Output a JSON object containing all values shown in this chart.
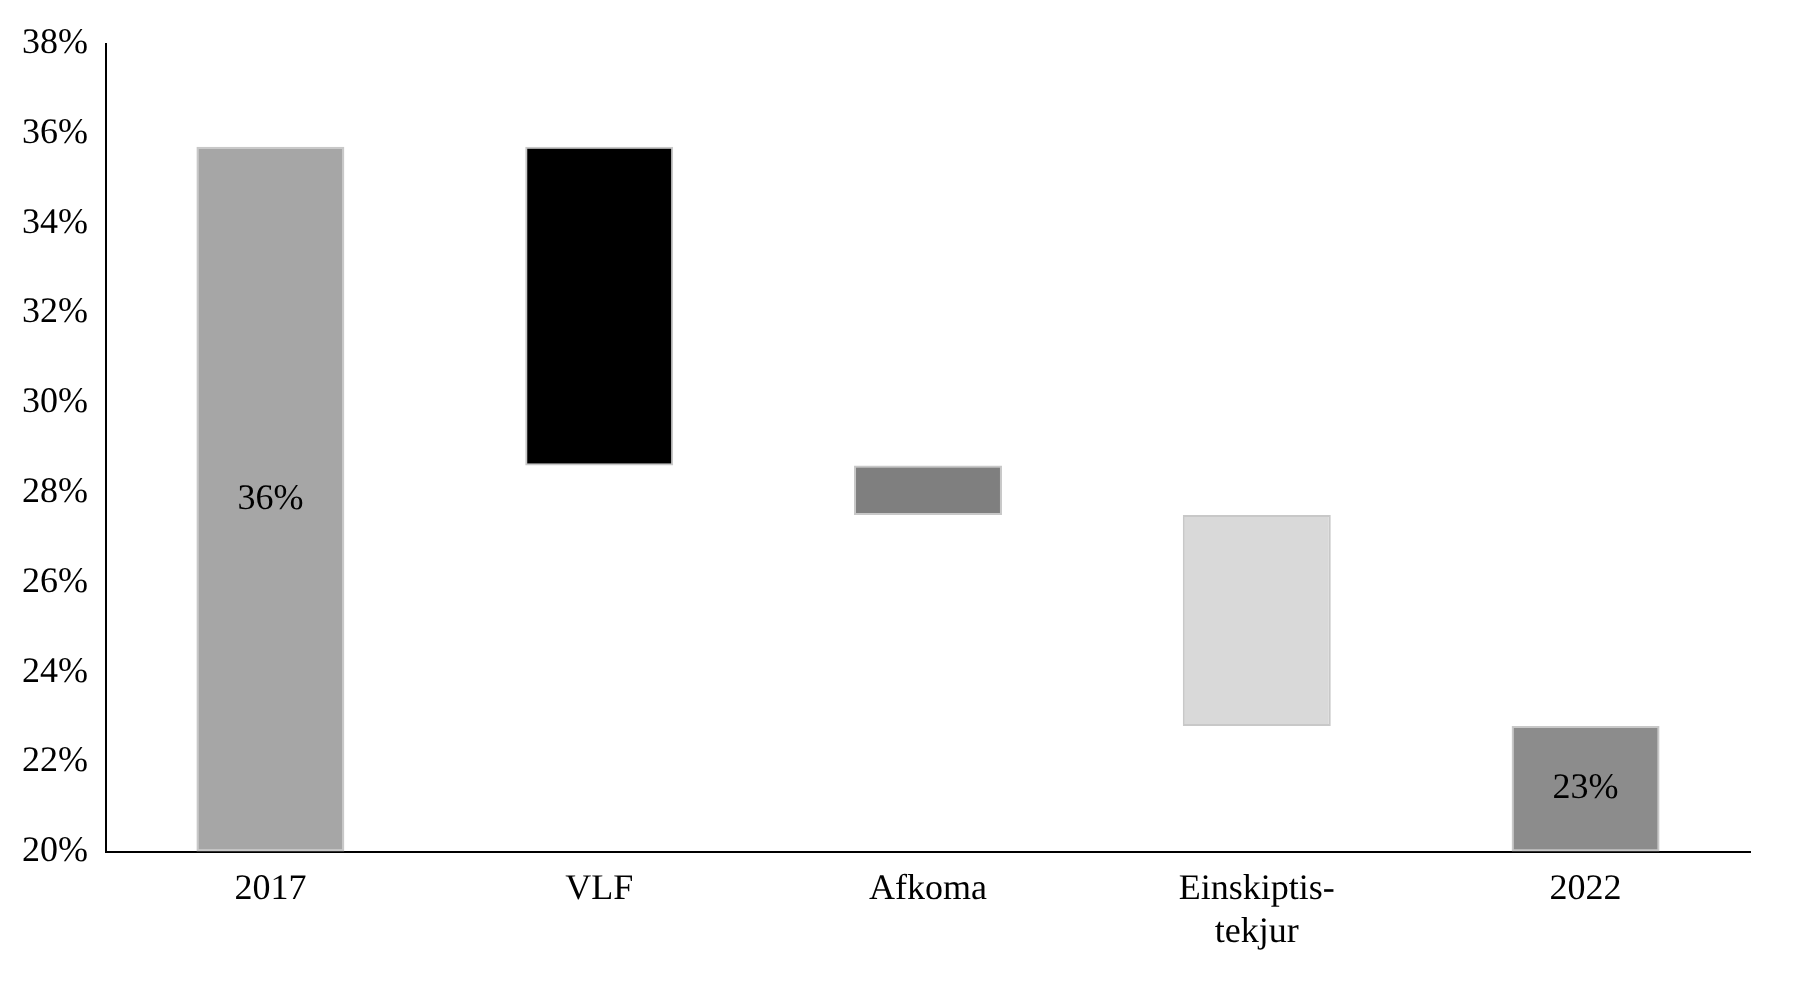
{
  "chart_data": {
    "type": "bar",
    "categories": [
      "2017",
      "VLF",
      "Afkoma",
      "Einskiptis-tekjur",
      "2022"
    ],
    "base": [
      20,
      28.6,
      27.5,
      22.8,
      20
    ],
    "values": [
      15.7,
      7.1,
      1.1,
      4.7,
      2.8
    ],
    "colors": [
      "#a6a6a6",
      "#000000",
      "#7f7f7f",
      "#d9d9d9",
      "#8c8c8c"
    ],
    "value_labels": [
      "36%",
      null,
      null,
      null,
      "23%"
    ],
    "ylim": [
      20,
      38
    ],
    "yticks": [
      {
        "value": 20,
        "label": "20%"
      },
      {
        "value": 22,
        "label": "22%"
      },
      {
        "value": 24,
        "label": "24%"
      },
      {
        "value": 26,
        "label": "26%"
      },
      {
        "value": 28,
        "label": "28%"
      },
      {
        "value": 30,
        "label": "30%"
      },
      {
        "value": 32,
        "label": "32%"
      },
      {
        "value": 34,
        "label": "34%"
      },
      {
        "value": 36,
        "label": "36%"
      },
      {
        "value": 38,
        "label": "38%"
      }
    ],
    "grid": false,
    "legend": false
  }
}
